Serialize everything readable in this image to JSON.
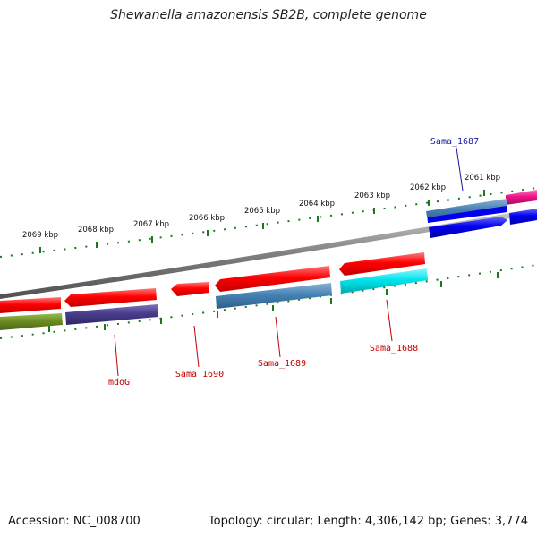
{
  "title": "Shewanella amazonensis SB2B, complete genome",
  "footer": {
    "accession": "Accession: NC_008700",
    "topology": "Topology: circular; Length: 4,306,142 bp; Genes: 3,774"
  },
  "ticks": [
    "2069 kbp",
    "2068 kbp",
    "2067 kbp",
    "2066 kbp",
    "2065 kbp",
    "2064 kbp",
    "2063 kbp",
    "2062 kbp",
    "2061 kbp"
  ],
  "gene_labels": [
    {
      "text": "Sama_1687",
      "color": "#1a1aa0"
    },
    {
      "text": "mdoG",
      "color": "#c00000"
    },
    {
      "text": "Sama_1690",
      "color": "#c00000"
    },
    {
      "text": "Sama_1689",
      "color": "#c00000"
    },
    {
      "text": "Sama_1688",
      "color": "#c00000"
    }
  ],
  "colors": {
    "forward_gene": "#ff0000",
    "backbone": "#808080",
    "tick": "#1a7a1a",
    "cog_steelblue": "#4682b4",
    "cog_navy": "#483d8b",
    "cog_olive": "#6b8e23",
    "cog_cyan": "#00e5ee",
    "cog_blue": "#0000ee",
    "cog_magenta": "#ee1289"
  }
}
